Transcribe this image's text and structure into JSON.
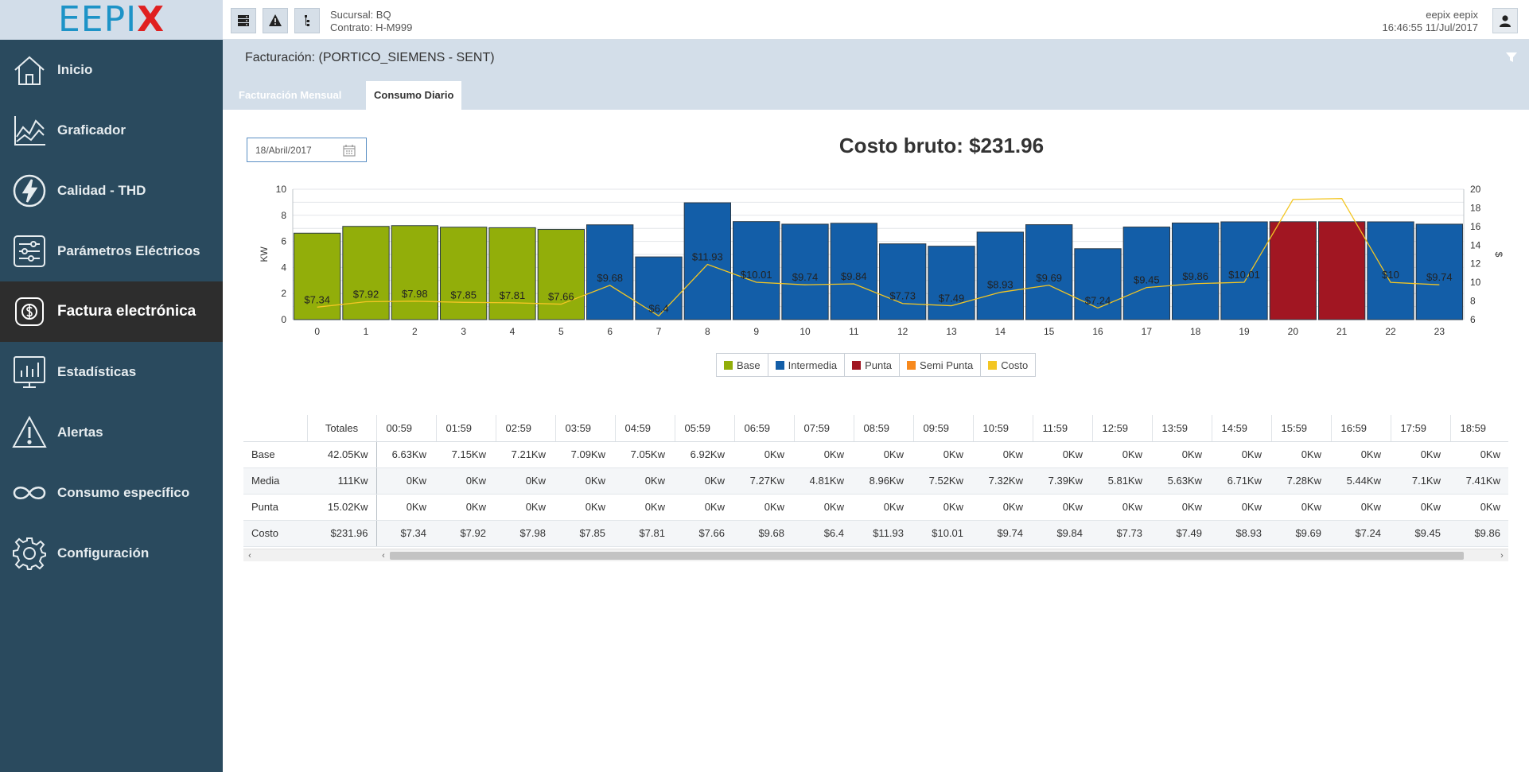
{
  "app": {
    "logo_part1": "EEPI",
    "logo_part2": "X"
  },
  "sidebar": {
    "items": [
      {
        "label": "Inicio",
        "icon": "home-icon"
      },
      {
        "label": "Graficador",
        "icon": "chart-line-icon"
      },
      {
        "label": "Calidad - THD",
        "icon": "lightning-icon"
      },
      {
        "label": "Parámetros Eléctricos",
        "icon": "sliders-icon"
      },
      {
        "label": "Factura electrónica",
        "icon": "dollar-icon",
        "active": true
      },
      {
        "label": "Estadísticas",
        "icon": "bar-monitor-icon"
      },
      {
        "label": "Alertas",
        "icon": "warning-icon"
      },
      {
        "label": "Consumo específico",
        "icon": "infinity-icon"
      },
      {
        "label": "Configuración",
        "icon": "gear-icon"
      }
    ]
  },
  "topbar": {
    "branch": "Sucursal: BQ",
    "contract": "Contrato: H-M999",
    "user": "eepix eepix",
    "datetime": "16:46:55 11/Jul/2017"
  },
  "header": {
    "title": "Facturación: (PORTICO_SIEMENS - SENT)",
    "tabs": [
      {
        "label": "Facturación Mensual"
      },
      {
        "label": "Consumo Diario",
        "active": true
      }
    ]
  },
  "date_picker": {
    "value": "18/Abril/2017"
  },
  "cost_title": "Costo bruto: $231.96",
  "colors": {
    "base": "#92ae0a",
    "intermedia": "#135ea8",
    "punta": "#a11622",
    "semi_punta": "#f7891d",
    "costo": "#f3c623"
  },
  "chart_data": {
    "type": "bar",
    "categories": [
      "0",
      "1",
      "2",
      "3",
      "4",
      "5",
      "6",
      "7",
      "8",
      "9",
      "10",
      "11",
      "12",
      "13",
      "14",
      "15",
      "16",
      "17",
      "18",
      "19",
      "20",
      "21",
      "22",
      "23"
    ],
    "series": [
      {
        "name": "Base",
        "values": [
          6.63,
          7.15,
          7.21,
          7.09,
          7.05,
          6.92,
          0,
          0,
          0,
          0,
          0,
          0,
          0,
          0,
          0,
          0,
          0,
          0,
          0,
          0,
          0,
          0,
          0,
          0
        ]
      },
      {
        "name": "Intermedia",
        "values": [
          0,
          0,
          0,
          0,
          0,
          0,
          7.27,
          4.81,
          8.96,
          7.52,
          7.32,
          7.39,
          5.81,
          5.63,
          6.71,
          7.28,
          5.44,
          7.1,
          7.41,
          7.5,
          0,
          0,
          7.5,
          7.32
        ]
      },
      {
        "name": "Punta",
        "values": [
          0,
          0,
          0,
          0,
          0,
          0,
          0,
          0,
          0,
          0,
          0,
          0,
          0,
          0,
          0,
          0,
          0,
          0,
          0,
          0,
          7.51,
          7.51,
          0,
          0
        ]
      },
      {
        "name": "Semi Punta",
        "values": [
          0,
          0,
          0,
          0,
          0,
          0,
          0,
          0,
          0,
          0,
          0,
          0,
          0,
          0,
          0,
          0,
          0,
          0,
          0,
          0,
          0,
          0,
          0,
          0
        ]
      },
      {
        "name": "Costo",
        "values": [
          7.34,
          7.92,
          7.98,
          7.85,
          7.81,
          7.66,
          9.68,
          6.4,
          11.93,
          10.01,
          9.74,
          9.84,
          7.73,
          7.49,
          8.93,
          9.69,
          7.24,
          9.45,
          9.86,
          10.01,
          18.9,
          19.0,
          10,
          9.74
        ]
      }
    ],
    "bar_labels": [
      "$7.34",
      "$7.92",
      "$7.98",
      "$7.85",
      "$7.81",
      "$7.66",
      "$9.68",
      "$6.4",
      "$11.93",
      "$10.01",
      "$9.74",
      "$9.84",
      "$7.73",
      "$7.49",
      "$8.93",
      "$9.69",
      "$7.24",
      "$9.45",
      "$9.86",
      "$10.01",
      "",
      "",
      "$10",
      "$9.74"
    ],
    "ylabel": "KW",
    "y2label": "$",
    "ylim": [
      0,
      10
    ],
    "y2lim": [
      6,
      20
    ],
    "yticks": [
      "0",
      "2",
      "4",
      "6",
      "8",
      "10"
    ],
    "y2ticks": [
      "6",
      "8",
      "10",
      "12",
      "14",
      "16",
      "18",
      "20"
    ],
    "legend": [
      "Base",
      "Intermedia",
      "Punta",
      "Semi Punta",
      "Costo"
    ],
    "legend_position": "bottom-center",
    "grid": true
  },
  "table": {
    "headers": [
      "Totales",
      "00:59",
      "01:59",
      "02:59",
      "03:59",
      "04:59",
      "05:59",
      "06:59",
      "07:59",
      "08:59",
      "09:59",
      "10:59",
      "11:59",
      "12:59",
      "13:59",
      "14:59",
      "15:59",
      "16:59",
      "17:59",
      "18:59"
    ],
    "rows": [
      {
        "label": "Base",
        "total": "42.05Kw",
        "values": [
          "6.63Kw",
          "7.15Kw",
          "7.21Kw",
          "7.09Kw",
          "7.05Kw",
          "6.92Kw",
          "0Kw",
          "0Kw",
          "0Kw",
          "0Kw",
          "0Kw",
          "0Kw",
          "0Kw",
          "0Kw",
          "0Kw",
          "0Kw",
          "0Kw",
          "0Kw",
          "0Kw"
        ]
      },
      {
        "label": "Media",
        "total": "111Kw",
        "values": [
          "0Kw",
          "0Kw",
          "0Kw",
          "0Kw",
          "0Kw",
          "0Kw",
          "7.27Kw",
          "4.81Kw",
          "8.96Kw",
          "7.52Kw",
          "7.32Kw",
          "7.39Kw",
          "5.81Kw",
          "5.63Kw",
          "6.71Kw",
          "7.28Kw",
          "5.44Kw",
          "7.1Kw",
          "7.41Kw"
        ]
      },
      {
        "label": "Punta",
        "total": "15.02Kw",
        "values": [
          "0Kw",
          "0Kw",
          "0Kw",
          "0Kw",
          "0Kw",
          "0Kw",
          "0Kw",
          "0Kw",
          "0Kw",
          "0Kw",
          "0Kw",
          "0Kw",
          "0Kw",
          "0Kw",
          "0Kw",
          "0Kw",
          "0Kw",
          "0Kw",
          "0Kw"
        ]
      },
      {
        "label": "Costo",
        "total": "$231.96",
        "values": [
          "$7.34",
          "$7.92",
          "$7.98",
          "$7.85",
          "$7.81",
          "$7.66",
          "$9.68",
          "$6.4",
          "$11.93",
          "$10.01",
          "$9.74",
          "$9.84",
          "$7.73",
          "$7.49",
          "$8.93",
          "$9.69",
          "$7.24",
          "$9.45",
          "$9.86"
        ]
      }
    ]
  }
}
